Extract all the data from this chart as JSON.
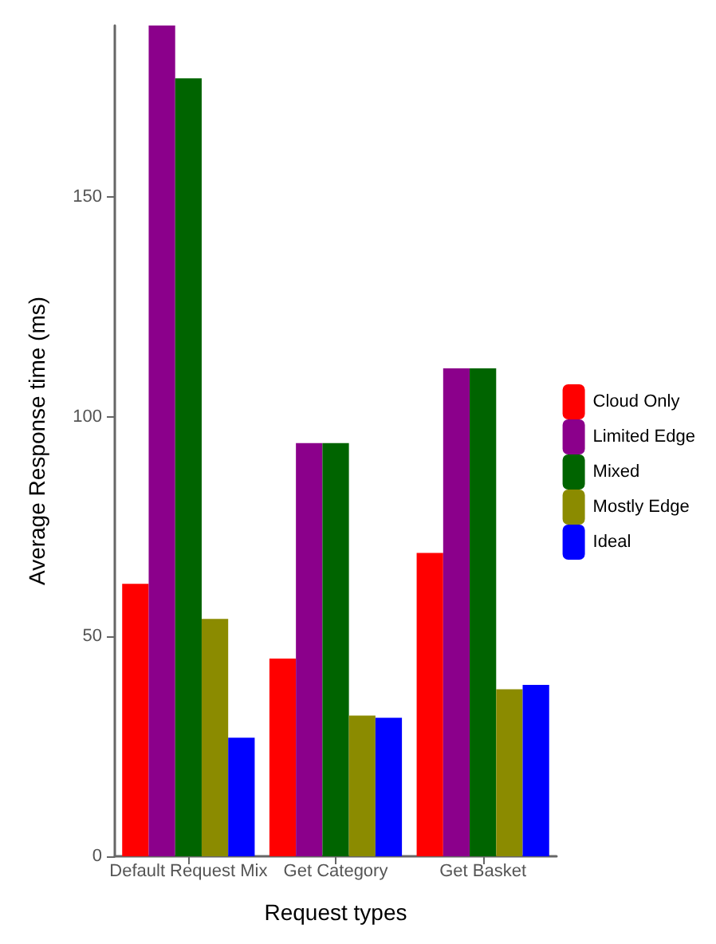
{
  "chart_data": {
    "type": "bar",
    "xlabel": "Request types",
    "ylabel": "Average Response time (ms)",
    "categories": [
      "Default Request Mix",
      "Get Category",
      "Get Basket"
    ],
    "series": [
      {
        "name": "Cloud Only",
        "color": "#ff0000",
        "values": [
          62,
          45,
          69
        ]
      },
      {
        "name": "Limited Edge",
        "color": "#8b008b",
        "values": [
          189,
          94,
          111
        ]
      },
      {
        "name": "Mixed",
        "color": "#006400",
        "values": [
          177,
          94,
          111
        ]
      },
      {
        "name": "Mostly Edge",
        "color": "#8b8b00",
        "values": [
          54,
          32,
          38
        ]
      },
      {
        "name": "Ideal",
        "color": "#0000ff",
        "values": [
          27,
          31.5,
          39
        ]
      }
    ],
    "ylim": [
      0,
      189
    ],
    "yticks": [
      0,
      50,
      100,
      150
    ],
    "grid": false,
    "legend": "right"
  }
}
